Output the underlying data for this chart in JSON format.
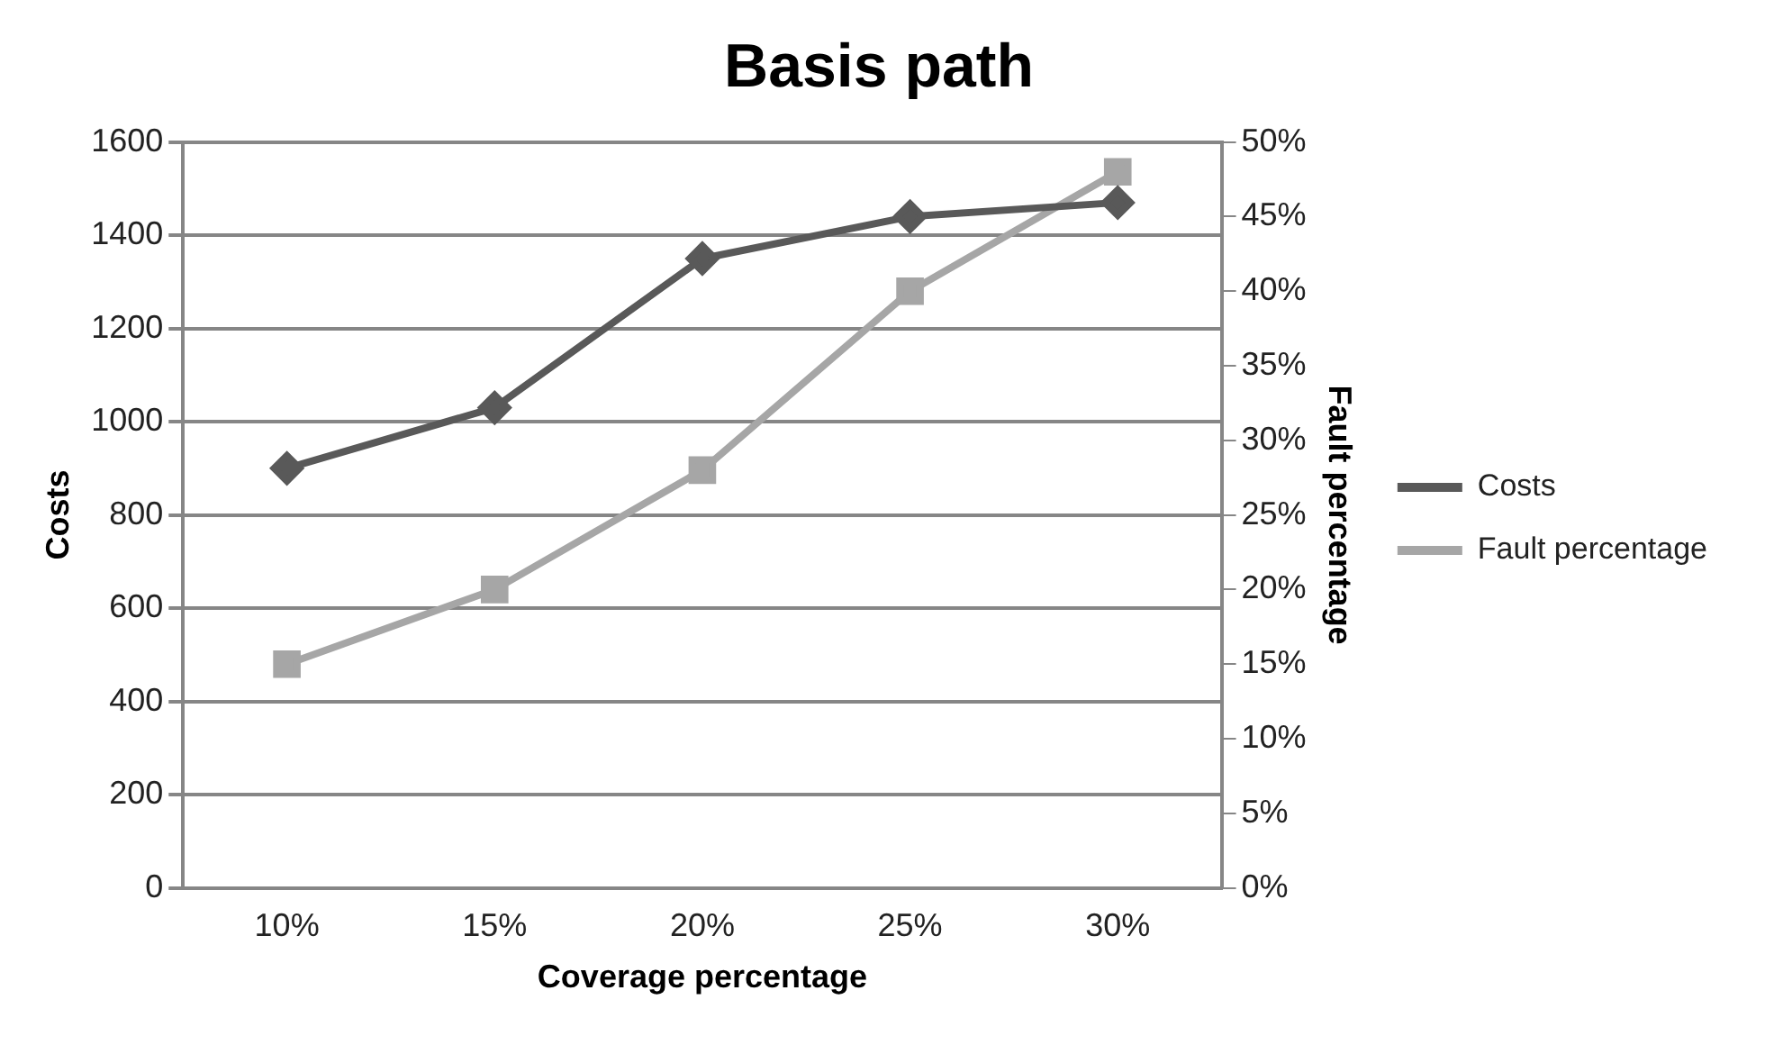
{
  "chart_data": {
    "type": "line",
    "title": "Basis path",
    "xlabel": "Coverage percentage",
    "ylabel": "Costs",
    "y2label": "Fault percentage",
    "categories": [
      "10%",
      "15%",
      "20%",
      "25%",
      "30%"
    ],
    "series": [
      {
        "name": "Costs",
        "color": "#595959",
        "values": [
          900,
          1030,
          1350,
          1440,
          1470
        ],
        "marker": "diamond"
      },
      {
        "name": "Fault percentage",
        "color": "#a6a6a6",
        "values": [
          15,
          20,
          28,
          40,
          48
        ],
        "marker": "square",
        "axis": "y2"
      }
    ],
    "ylim": [
      0,
      1600
    ],
    "yticks": [
      0,
      200,
      400,
      600,
      800,
      1000,
      1200,
      1400,
      1600
    ],
    "y2lim": [
      0,
      50
    ],
    "y2ticks": [
      {
        "value": 0,
        "label": "0%"
      },
      {
        "value": 5,
        "label": "5%"
      },
      {
        "value": 10,
        "label": "10%"
      },
      {
        "value": 15,
        "label": "15%"
      },
      {
        "value": 20,
        "label": "20%"
      },
      {
        "value": 25,
        "label": "25%"
      },
      {
        "value": 30,
        "label": "30%"
      },
      {
        "value": 35,
        "label": "35%"
      },
      {
        "value": 40,
        "label": "40%"
      },
      {
        "value": 45,
        "label": "45%"
      },
      {
        "value": 50,
        "label": "50%"
      }
    ],
    "grid": "y",
    "legend": "right"
  }
}
